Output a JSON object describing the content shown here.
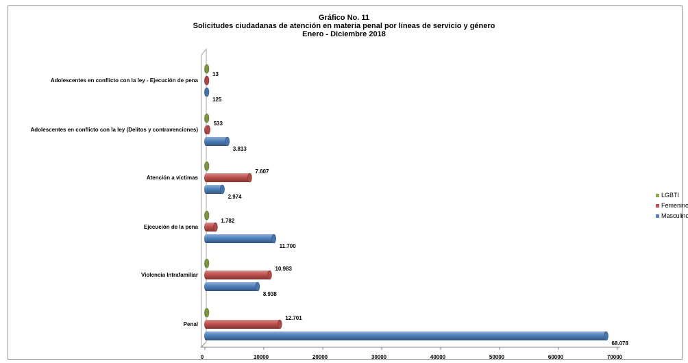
{
  "chart_data": {
    "type": "bar",
    "orientation": "horizontal",
    "title_lines": [
      "Gráfico No. 11",
      "Solicitudes ciudadanas de atención en materia penal por  líneas de servicio y género",
      "Enero - Diciembre 2018"
    ],
    "categories": [
      "Adolescentes en conflicto con la ley - Ejecución de pena",
      "Adolescentes en conflicto con la ley (Delitos y contravenciones)",
      "Atención a víctimas",
      "Ejecución de la pena",
      "Violencia Intrafamiliar",
      "Penal"
    ],
    "series": [
      {
        "name": "LGBTI",
        "color": "#8aa84a",
        "values": [
          0,
          0,
          0,
          0,
          0,
          0
        ],
        "labels": [
          "",
          "",
          "",
          "",
          "",
          ""
        ]
      },
      {
        "name": "Femenino",
        "color": "#c0504d",
        "values": [
          13,
          533,
          7607,
          1782,
          10983,
          12701
        ],
        "labels": [
          "13",
          "533",
          "7.607",
          "1.782",
          "10.983",
          "12.701"
        ]
      },
      {
        "name": "Masculino",
        "color": "#4f81bd",
        "values": [
          125,
          3813,
          2974,
          11700,
          8938,
          68078
        ],
        "labels": [
          "125",
          "3.813",
          "2.974",
          "11.700",
          "8.938",
          "68.078"
        ]
      }
    ],
    "legend_order": [
      "LGBTI",
      "Femenino",
      "Masculino"
    ],
    "xlim": [
      0,
      70000
    ],
    "xticks": [
      0,
      10000,
      20000,
      30000,
      40000,
      50000,
      60000,
      70000
    ],
    "xtick_labels": [
      "0",
      "10000",
      "20000",
      "30000",
      "40000",
      "50000",
      "60000",
      "70000"
    ],
    "grid": false,
    "legend_position": "right"
  }
}
